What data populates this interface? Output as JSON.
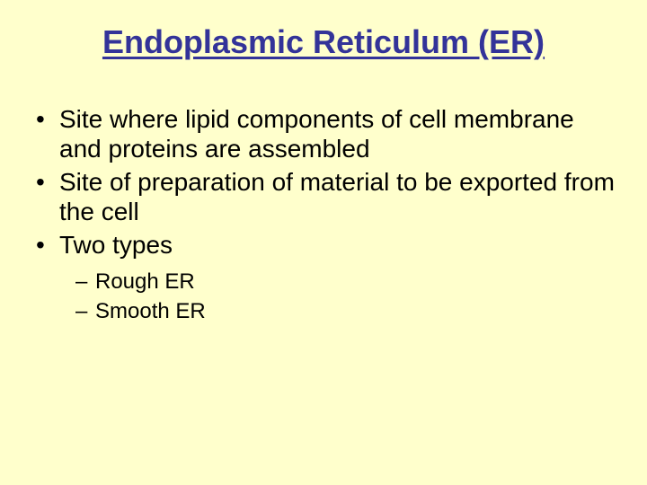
{
  "slide": {
    "title": "Endoplasmic Reticulum (ER)",
    "bullets_l1": [
      "Site where lipid components of cell membrane and proteins are assembled",
      "Site of preparation of material to be exported from the cell",
      "Two types"
    ],
    "bullets_l2": [
      "Rough ER",
      "Smooth ER"
    ]
  },
  "style": {
    "background_color": "#ffffcc",
    "title_color": "#333399",
    "title_fontsize": 36,
    "title_fontweight": "bold",
    "title_underline": true,
    "body_color": "#000000",
    "body_fontsize_l1": 28,
    "body_fontsize_l2": 24,
    "bullet_l1_marker": "•",
    "bullet_l2_marker": "–",
    "font_family": "Arial",
    "slide_width": 720,
    "slide_height": 540
  }
}
